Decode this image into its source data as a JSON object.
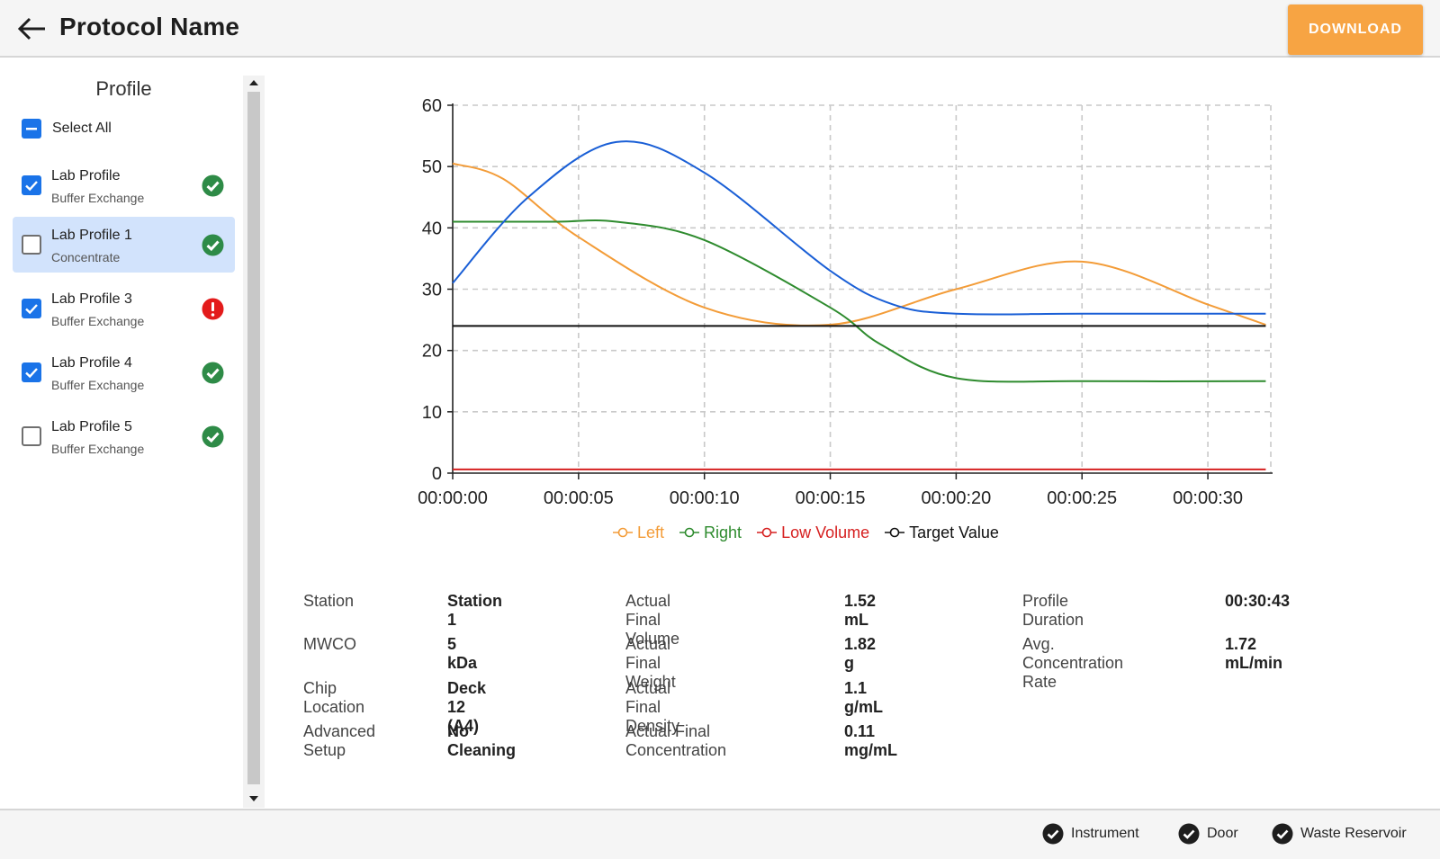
{
  "header": {
    "title": "Protocol Name",
    "download_label": "DOWNLOAD"
  },
  "sidebar": {
    "heading": "Profile",
    "select_all_label": "Select All",
    "profiles": [
      {
        "name": "Lab Profile",
        "subtitle": "Buffer Exchange",
        "checked": true,
        "selected": false,
        "status": "ok"
      },
      {
        "name": "Lab Profile 1",
        "subtitle": "Concentrate",
        "checked": false,
        "selected": true,
        "status": "ok"
      },
      {
        "name": "Lab Profile 3",
        "subtitle": "Buffer Exchange",
        "checked": true,
        "selected": false,
        "status": "error"
      },
      {
        "name": "Lab Profile 4",
        "subtitle": "Buffer Exchange",
        "checked": true,
        "selected": false,
        "status": "ok"
      },
      {
        "name": "Lab Profile 5",
        "subtitle": "Buffer Exchange",
        "checked": false,
        "selected": false,
        "status": "ok"
      }
    ]
  },
  "chart_data": {
    "type": "line",
    "x_ticks": [
      "00:00:00",
      "00:00:05",
      "00:00:10",
      "00:00:15",
      "00:00:20",
      "00:00:25",
      "00:00:30"
    ],
    "y_ticks": [
      0,
      10,
      20,
      30,
      40,
      50,
      60
    ],
    "ylim": [
      0,
      60
    ],
    "xlim_seconds": [
      0,
      32.5
    ],
    "grid": true,
    "legend_position": "bottom",
    "series": [
      {
        "name": "Left",
        "color": "#f39c38",
        "x_seconds": [
          0,
          2,
          5,
          10,
          15,
          20,
          25,
          30,
          32.3
        ],
        "y": [
          50.5,
          48,
          38.5,
          27,
          24.2,
          30,
          34.5,
          27.5,
          24.2
        ]
      },
      {
        "name": "Right",
        "color": "#2e8b2e",
        "x_seconds": [
          0,
          4,
          6.5,
          10,
          15,
          17,
          20,
          25,
          32.3
        ],
        "y": [
          41,
          41,
          41,
          38,
          27,
          21,
          15.5,
          15,
          15
        ]
      },
      {
        "name": "",
        "color": "#1a5fd6",
        "x_seconds": [
          0,
          3,
          6.5,
          10,
          15,
          17.5,
          20,
          25,
          32.3
        ],
        "y": [
          31,
          45,
          54,
          49,
          33,
          27.5,
          26,
          26,
          26
        ]
      },
      {
        "name": "Low Volume",
        "color": "#d62020",
        "x_seconds": [
          0,
          32.3
        ],
        "y": [
          0.6,
          0.6
        ]
      },
      {
        "name": "Target Value",
        "color": "#111111",
        "x_seconds": [
          0,
          32.3
        ],
        "y": [
          24,
          24
        ]
      }
    ]
  },
  "details": {
    "col1": [
      {
        "label": "Station",
        "value": "Station 1"
      },
      {
        "label": "MWCO",
        "value": "5 kDa"
      },
      {
        "label": "Chip Location",
        "value": "Deck 12 (A4)"
      },
      {
        "label": "Advanced Setup",
        "value": "No Cleaning"
      }
    ],
    "col2": [
      {
        "label": "Actual Final Volume",
        "value": "1.52 mL"
      },
      {
        "label": "Actual Final Weight",
        "value": "1.82 g"
      },
      {
        "label": "Actual Final Density",
        "value": "1.1 g/mL"
      },
      {
        "label": "Actual Final Concentration",
        "value": "0.11 mg/mL"
      }
    ],
    "col3": [
      {
        "label": "Profile Duration",
        "value": "00:30:43"
      },
      {
        "label": "Avg. Concentration Rate",
        "value": "1.72 mL/min"
      }
    ]
  },
  "footer": {
    "items": [
      "Instrument",
      "Door",
      "Waste Reservoir"
    ]
  },
  "colors": {
    "accent": "#f7a443",
    "checkbox": "#1a73e8",
    "selected_row": "#d2e3fc",
    "ok": "#2e8b47",
    "error": "#e31b1b"
  }
}
